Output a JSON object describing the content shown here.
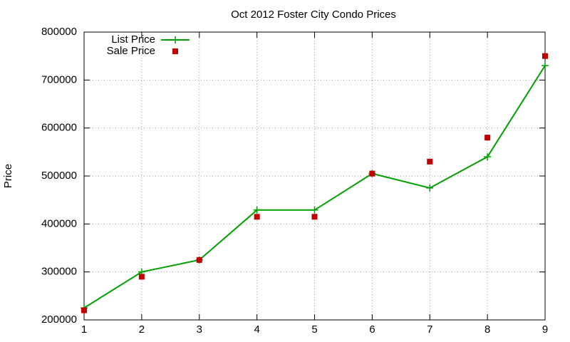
{
  "chart_data": {
    "type": "line",
    "title": "Oct 2012 Foster City Condo Prices",
    "y_label": "Price",
    "x": [
      1,
      2,
      3,
      4,
      5,
      6,
      7,
      8,
      9
    ],
    "series": [
      {
        "name": "List Price",
        "color": "#00a000",
        "marker": "plus",
        "line": true,
        "values": [
          225000,
          300000,
          325000,
          429000,
          429000,
          505000,
          475000,
          540000,
          730000
        ]
      },
      {
        "name": "Sale Price",
        "color": "#c00000",
        "marker": "square",
        "line": false,
        "values": [
          220000,
          290000,
          325000,
          415000,
          415000,
          505000,
          530000,
          580000,
          750000
        ]
      }
    ],
    "xlim": [
      1,
      9
    ],
    "xticks": [
      1,
      2,
      3,
      4,
      5,
      6,
      7,
      8,
      9
    ],
    "ylim": [
      200000,
      800000
    ],
    "yticks": [
      200000,
      300000,
      400000,
      500000,
      600000,
      700000,
      800000
    ],
    "grid": true,
    "legend": "top-left"
  }
}
